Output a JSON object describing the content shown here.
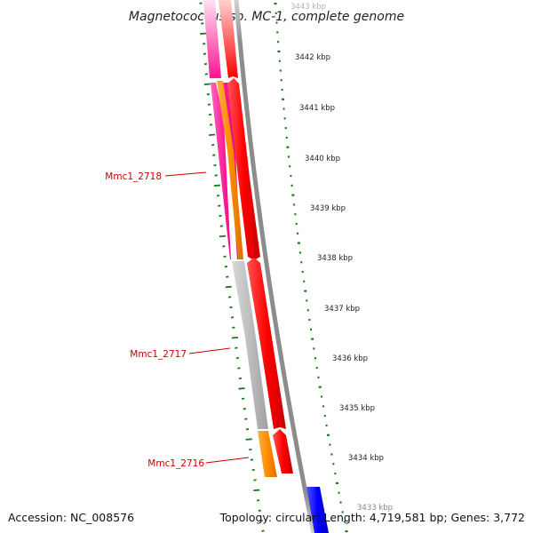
{
  "title": "Magnetococcus sp. MC-1, complete genome",
  "kbp_labels": [
    "3443 kbp",
    "3442 kbp",
    "3441 kbp",
    "3440 kbp",
    "3439 kbp",
    "3438 kbp",
    "3437 kbp",
    "3436 kbp",
    "3435 kbp",
    "3434 kbp",
    "3433 kbp"
  ],
  "gene_labels": [
    "Mmc1_2718",
    "Mmc1_2717",
    "Mmc1_2716"
  ],
  "footer": {
    "accession": "Accession: NC_008576",
    "stats": "Topology: circular; Length: 4,719,581 bp; Genes: 3,772"
  },
  "colors": {
    "title_text": "#222222",
    "gene_label": "#cc0000",
    "cds_arrow": "#ff0000",
    "pink_feature": "#ff1493",
    "orange_feature": "#ff8c00",
    "gray_feature": "#b8b8b8",
    "blue_feature": "#0000ff",
    "backbone": "#8c8c8c",
    "tick_marks": "#1a7a1a"
  }
}
